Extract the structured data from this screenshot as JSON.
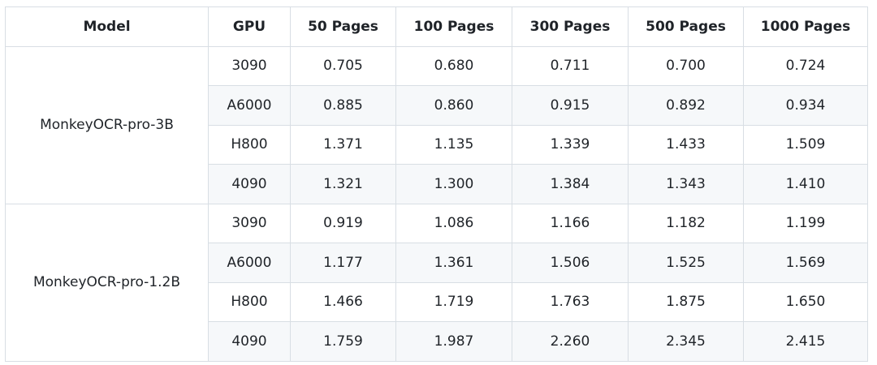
{
  "table": {
    "columns": [
      "Model",
      "GPU",
      "50 Pages",
      "100 Pages",
      "300 Pages",
      "500 Pages",
      "1000 Pages"
    ],
    "groups": [
      {
        "model": "MonkeyOCR-pro-3B",
        "rows": [
          [
            "3090",
            "0.705",
            "0.680",
            "0.711",
            "0.700",
            "0.724"
          ],
          [
            "A6000",
            "0.885",
            "0.860",
            "0.915",
            "0.892",
            "0.934"
          ],
          [
            "H800",
            "1.371",
            "1.135",
            "1.339",
            "1.433",
            "1.509"
          ],
          [
            "4090",
            "1.321",
            "1.300",
            "1.384",
            "1.343",
            "1.410"
          ]
        ]
      },
      {
        "model": "MonkeyOCR-pro-1.2B",
        "rows": [
          [
            "3090",
            "0.919",
            "1.086",
            "1.166",
            "1.182",
            "1.199"
          ],
          [
            "A6000",
            "1.177",
            "1.361",
            "1.506",
            "1.525",
            "1.569"
          ],
          [
            "H800",
            "1.466",
            "1.719",
            "1.763",
            "1.875",
            "1.650"
          ],
          [
            "4090",
            "1.759",
            "1.987",
            "2.260",
            "2.345",
            "2.415"
          ]
        ]
      }
    ]
  }
}
